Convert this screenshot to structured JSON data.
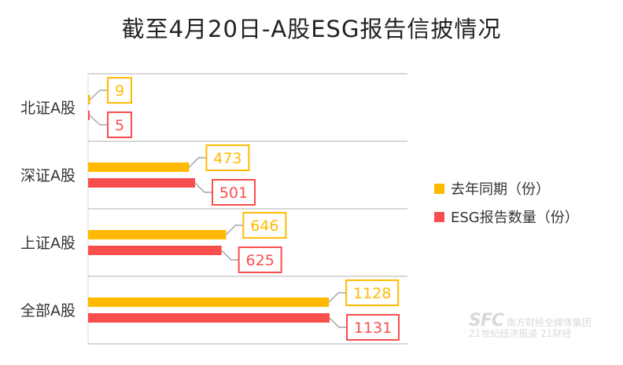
{
  "title": "截至4月20日-A股ESG报告信披情况",
  "colors": {
    "prior": "#FFBA00",
    "current": "#F94E4E",
    "grid": "#d8d8d8",
    "leader": "#a6a6a6"
  },
  "chart_data": {
    "type": "bar",
    "orientation": "horizontal",
    "categories": [
      "北证A股",
      "深证A股",
      "上证A股",
      "全部A股"
    ],
    "series": [
      {
        "name": "去年同期（份）",
        "values": [
          9,
          473,
          646,
          1128
        ]
      },
      {
        "name": "ESG报告数量（份）",
        "values": [
          5,
          501,
          625,
          1131
        ]
      }
    ],
    "xlim": [
      0,
      1131
    ],
    "grid": "horizontal-separators",
    "legend": "right",
    "data_labels": true
  },
  "watermark": {
    "logo": "SFC",
    "line1": "南方财经全媒体集团",
    "line2": "21世纪经济报道  21财经"
  }
}
